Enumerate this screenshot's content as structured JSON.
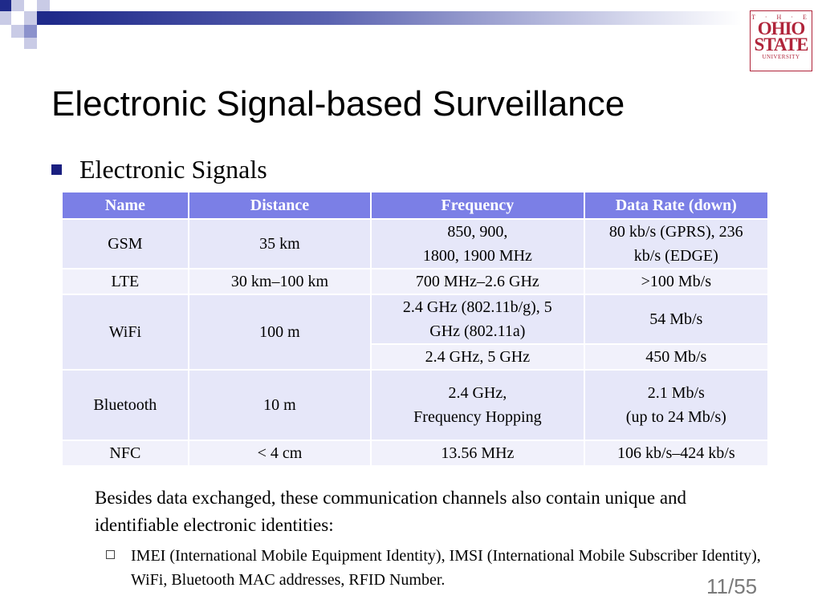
{
  "logo": {
    "line1": "T · H · E",
    "line2": "OHIO",
    "line3": "STATE",
    "line4": "UNIVERSITY"
  },
  "title": "Electronic Signal-based Surveillance",
  "bullet": "Electronic Signals",
  "table": {
    "headers": [
      "Name",
      "Distance",
      "Frequency",
      "Data Rate (down)"
    ],
    "gsm": {
      "name": "GSM",
      "distance": "35 km",
      "freq1": "850, 900,",
      "freq2": "1800, 1900 MHz",
      "rate1": "80 kb/s (GPRS), 236",
      "rate2": "kb/s (EDGE)"
    },
    "lte": {
      "name": "LTE",
      "distance": "30 km–100 km",
      "freq": "700 MHz–2.6 GHz",
      "rate": ">100 Mb/s"
    },
    "wifi": {
      "name": "WiFi",
      "distance": "100 m",
      "freq1a": "2.4 GHz (802.11b/g), 5",
      "freq1b": "GHz (802.11a)",
      "rate1": "54 Mb/s",
      "freq2": "2.4 GHz, 5 GHz",
      "rate2": "450 Mb/s"
    },
    "bluetooth": {
      "name": "Bluetooth",
      "distance": "10 m",
      "freq1": "2.4 GHz,",
      "freq2": "Frequency Hopping",
      "rate1": "2.1 Mb/s",
      "rate2": "(up to 24 Mb/s)"
    },
    "nfc": {
      "name": "NFC",
      "distance": "< 4 cm",
      "freq": "13.56 MHz",
      "rate": "106 kb/s–424 kb/s"
    }
  },
  "paragraph": "Besides data exchanged, these communication channels also contain unique and identifiable electronic identities:",
  "subbullet": "IMEI (International Mobile Equipment Identity), IMSI (International Mobile Subscriber Identity), WiFi, Bluetooth MAC addresses, RFID Number.",
  "page_number": "11/55",
  "colors": {
    "header_bg": "#7b7fe6",
    "cell_bg": "#e6e7f9",
    "cell_alt_bg": "#f1f1fb",
    "bullet": "#1a1f80",
    "logo": "#b0243a"
  }
}
